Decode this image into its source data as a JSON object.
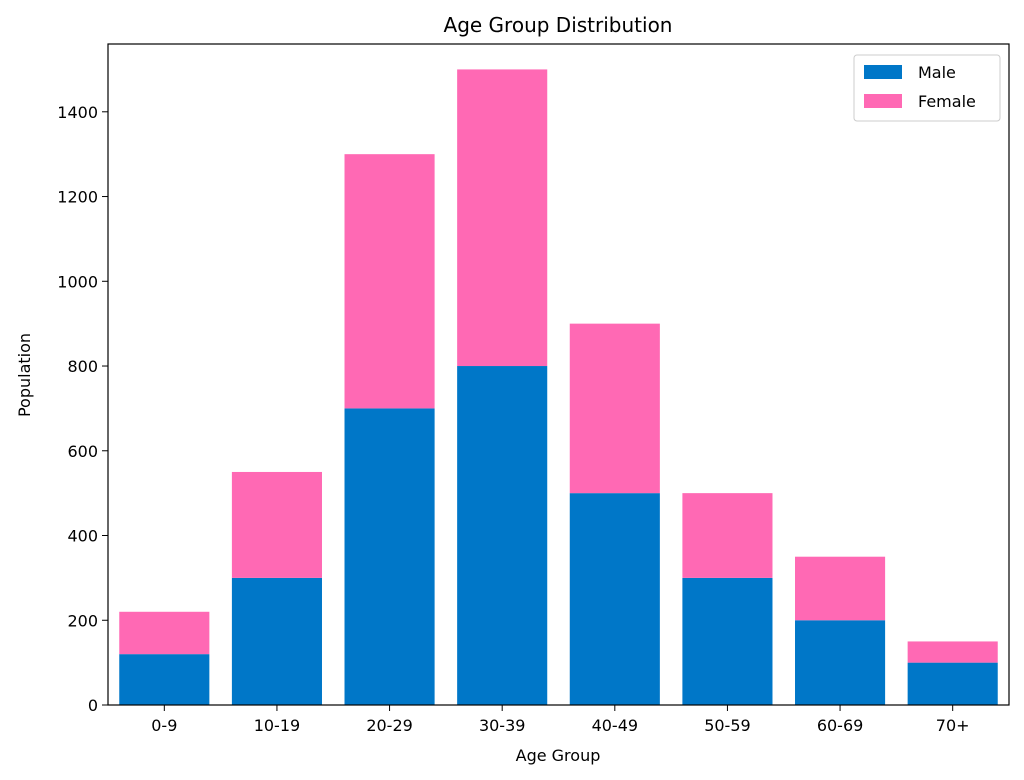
{
  "chart_data": {
    "type": "bar",
    "stacked": true,
    "title": "Age Group Distribution",
    "xlabel": "Age Group",
    "ylabel": "Population",
    "categories": [
      "0-9",
      "10-19",
      "20-29",
      "30-39",
      "40-49",
      "50-59",
      "60-69",
      "70+"
    ],
    "series": [
      {
        "name": "Male",
        "color": "#0077c8",
        "values": [
          120,
          300,
          700,
          800,
          500,
          300,
          200,
          100
        ]
      },
      {
        "name": "Female",
        "color": "#ff69b4",
        "values": [
          100,
          250,
          600,
          700,
          400,
          200,
          150,
          50
        ]
      }
    ],
    "ylim": [
      0,
      1560
    ],
    "yticks": [
      0,
      200,
      400,
      600,
      800,
      1000,
      1200,
      1400
    ],
    "grid": false,
    "legend": "top-right"
  }
}
